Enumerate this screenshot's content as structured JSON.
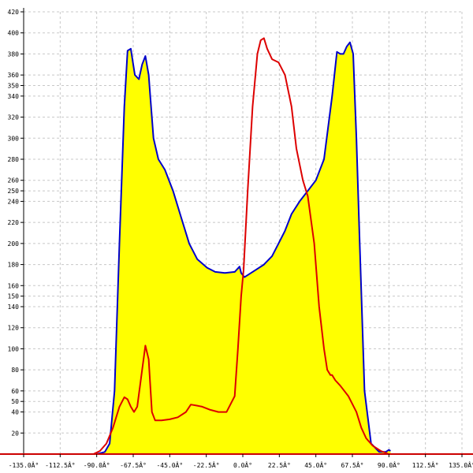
{
  "chart_data": {
    "type": "area",
    "title": "",
    "xlabel": "",
    "ylabel": "",
    "xlim": [
      -135,
      135
    ],
    "ylim": [
      0,
      420
    ],
    "grid": true,
    "xticks": [
      {
        "value": -135,
        "label": "-135.0Â°"
      },
      {
        "value": -112.5,
        "label": "-112.5Â°"
      },
      {
        "value": -90,
        "label": "-90.0Â°"
      },
      {
        "value": -67.5,
        "label": "-67.5Â°"
      },
      {
        "value": -45,
        "label": "-45.0Â°"
      },
      {
        "value": -22.5,
        "label": "-22.5Â°"
      },
      {
        "value": 0,
        "label": "0.0Â°"
      },
      {
        "value": 22.5,
        "label": "22.5Â°"
      },
      {
        "value": 45,
        "label": "45.0Â°"
      },
      {
        "value": 67.5,
        "label": "67.5Â°"
      },
      {
        "value": 90,
        "label": "90.0Â°"
      },
      {
        "value": 112.5,
        "label": "112.5Â°"
      },
      {
        "value": 135,
        "label": "135.0Â°"
      }
    ],
    "yticks": [
      20,
      40,
      50,
      60,
      80,
      100,
      120,
      140,
      150,
      160,
      180,
      200,
      220,
      240,
      250,
      260,
      280,
      300,
      320,
      340,
      350,
      360,
      380,
      400,
      420
    ],
    "series": [
      {
        "color": "#0000cc",
        "fill": "#ffff00",
        "x": [
          -90,
          -85,
          -82,
          -79,
          -76,
          -73,
          -71,
          -69,
          -67.5,
          -66.5,
          -64,
          -62,
          -60,
          -58,
          -57,
          -55,
          -52,
          -48,
          -43,
          -38,
          -33,
          -28,
          -22,
          -17,
          -11,
          -5,
          -2,
          -1,
          1,
          3,
          8,
          13,
          18,
          22,
          26,
          30,
          35,
          40,
          45,
          50,
          55,
          58,
          60,
          62,
          64,
          66,
          68,
          70,
          72,
          75,
          79,
          84,
          88,
          90,
          91
        ],
        "y": [
          0,
          2,
          10,
          60,
          200,
          330,
          383,
          385,
          370,
          360,
          356,
          370,
          378,
          360,
          340,
          300,
          280,
          270,
          250,
          225,
          200,
          185,
          177,
          173,
          172,
          173,
          178,
          172,
          168,
          170,
          175,
          180,
          188,
          200,
          212,
          228,
          240,
          250,
          260,
          280,
          340,
          382,
          380,
          380,
          387,
          391,
          380,
          300,
          200,
          60,
          10,
          2,
          2,
          4,
          3
        ]
      },
      {
        "color": "#dd0000",
        "x": [
          -92,
          -88,
          -84,
          -80,
          -76,
          -73,
          -71,
          -69,
          -67,
          -65,
          -62,
          -60,
          -58,
          -56,
          -54,
          -52,
          -50,
          -45,
          -40,
          -35,
          -32,
          -28,
          -25,
          -20,
          -15,
          -10,
          -5,
          -3,
          -1,
          0.5,
          3,
          6,
          9,
          11,
          13,
          15,
          18,
          22,
          26,
          30,
          33,
          37,
          40,
          44,
          47,
          50,
          52,
          54,
          55,
          57,
          60,
          65,
          70,
          73,
          76,
          80,
          85,
          90,
          92
        ],
        "y": [
          0,
          3,
          10,
          25,
          45,
          54,
          52,
          45,
          40,
          45,
          80,
          103,
          90,
          40,
          32,
          32,
          32,
          33,
          35,
          40,
          47,
          46,
          45,
          42,
          40,
          40,
          55,
          100,
          150,
          175,
          250,
          330,
          380,
          393,
          395,
          385,
          375,
          372,
          360,
          330,
          290,
          260,
          245,
          200,
          140,
          100,
          80,
          75,
          75,
          70,
          65,
          55,
          40,
          25,
          15,
          8,
          3,
          0,
          0
        ]
      }
    ]
  }
}
